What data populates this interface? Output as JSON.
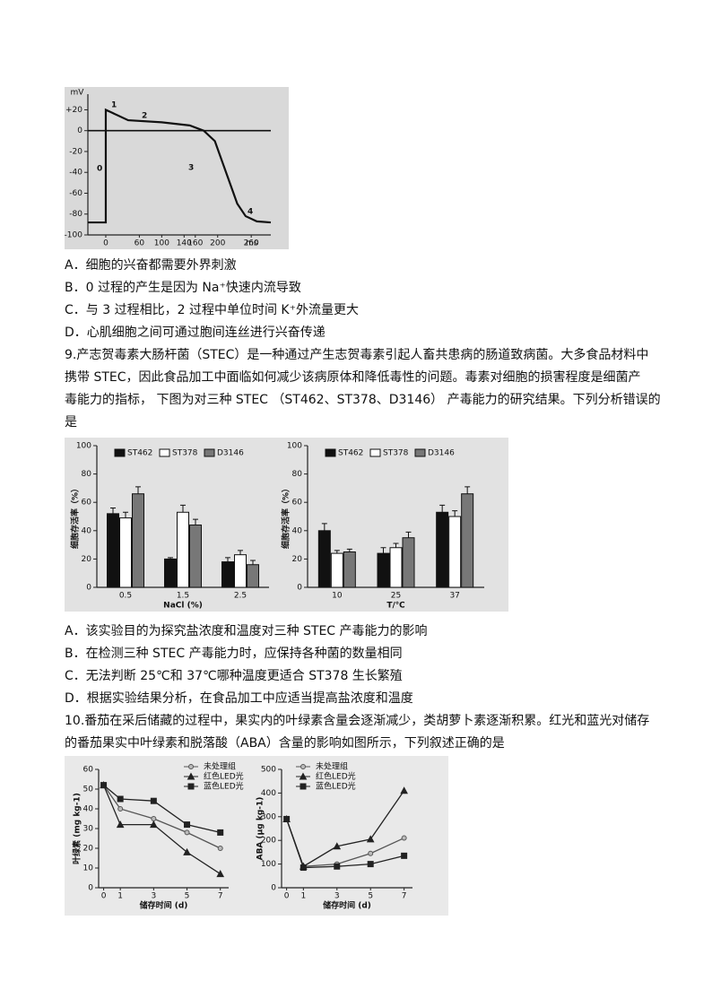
{
  "figure1": {
    "type": "line",
    "y_unit": "mV",
    "x_unit": "ms",
    "xlim": [
      -32,
      295
    ],
    "ylim": [
      -100,
      35
    ],
    "xticks": [
      0,
      60,
      100,
      140,
      160,
      200,
      260
    ],
    "yticks": [
      {
        "value": 20,
        "label": "+20"
      },
      0,
      -20,
      -40,
      -60,
      -80,
      -100
    ],
    "x": [
      -32,
      0,
      0,
      8,
      40,
      100,
      150,
      175,
      195,
      215,
      235,
      250,
      270,
      295
    ],
    "values": [
      -88,
      -88,
      20,
      18,
      10,
      8,
      5,
      0,
      -10,
      -40,
      -70,
      -82,
      -87,
      -88
    ],
    "annotations": [
      "0",
      "1",
      "2",
      "3",
      "4"
    ]
  },
  "q8_options": [
    "A．细胞的兴奋都需要外界刺激",
    "B．0 过程的产生是因为 Na⁺快速内流导致",
    "C．与 3 过程相比，2 过程中单位时间 K⁺外流量更大",
    "D．心肌细胞之间可通过胞间连丝进行兴奋传递"
  ],
  "q9": {
    "stem": [
      "9.产志贺毒素大肠杆菌（STEC）是一种通过产生志贺毒素引起人畜共患病的肠道致病菌。大多食品材料中",
      "携带 STEC，因此食品加工中面临如何减少该病原体和降低毒性的问题。毒素对细胞的损害程度是细菌产",
      "毒能力的指标， 下图为对三种 STEC （ST462、ST378、D3146） 产毒能力的研究结果。下列分析错误的",
      "是"
    ],
    "options": [
      "A．该实验目的为探究盐浓度和温度对三种 STEC 产毒能力的影响",
      "B．在检测三种 STEC 产毒能力时，应保持各种菌的数量相同",
      "C．无法判断 25℃和 37℃哪种温度更适合 ST378 生长繁殖",
      "D．根据实验结果分析，在食品加工中应适当提高盐浓度和温度"
    ]
  },
  "figure2": [
    {
      "type": "bar",
      "y_label": "细胞存活率（%）",
      "x_label": "NaCl (%)",
      "ylim": [
        0,
        100
      ],
      "yticks": [
        0,
        20,
        40,
        60,
        80,
        100
      ],
      "categories": [
        "0.5",
        "1.5",
        "2.5"
      ],
      "series": [
        {
          "name": "ST462",
          "color": "#111111",
          "values": [
            52,
            20,
            18
          ],
          "errors": [
            4,
            1,
            3
          ]
        },
        {
          "name": "ST378",
          "color": "#ffffff",
          "values": [
            49,
            53,
            23
          ],
          "errors": [
            4,
            5,
            3
          ]
        },
        {
          "name": "D3146",
          "color": "#777777",
          "values": [
            66,
            44,
            16
          ],
          "errors": [
            5,
            4,
            3
          ]
        }
      ]
    },
    {
      "type": "bar",
      "y_label": "细胞存活率（%）",
      "x_label": "T/℃",
      "ylim": [
        0,
        100
      ],
      "yticks": [
        0,
        20,
        40,
        60,
        80,
        100
      ],
      "categories": [
        "10",
        "25",
        "37"
      ],
      "series": [
        {
          "name": "ST462",
          "color": "#111111",
          "values": [
            40,
            24,
            53
          ],
          "errors": [
            5,
            4,
            5
          ]
        },
        {
          "name": "ST378",
          "color": "#ffffff",
          "values": [
            24,
            28,
            50
          ],
          "errors": [
            2,
            3,
            4
          ]
        },
        {
          "name": "D3146",
          "color": "#777777",
          "values": [
            25,
            35,
            66
          ],
          "errors": [
            2,
            4,
            5
          ]
        }
      ]
    }
  ],
  "q10": {
    "stem": [
      "10.番茄在采后储藏的过程中，果实内的叶绿素含量会逐渐减少，类胡萝卜素逐渐积累。红光和蓝光对储存",
      "的番茄果实中叶绿素和脱落酸（ABA）含量的影响如图所示，下列叙述正确的是"
    ]
  },
  "figure3": [
    {
      "type": "line",
      "y_label": "叶绿素 (mg kg-1)",
      "x_label": "储存时间 (d)",
      "xlim": [
        -0.3,
        7.5
      ],
      "ylim": [
        0,
        60
      ],
      "xticks": [
        0,
        1,
        3,
        5,
        7
      ],
      "yticks": [
        0,
        10,
        20,
        30,
        40,
        50,
        60
      ],
      "x": [
        0,
        1,
        3,
        5,
        7
      ],
      "series": [
        {
          "name": "未处理组",
          "color": "#555555",
          "marker": "circle",
          "values": [
            52,
            40,
            35,
            28,
            20
          ]
        },
        {
          "name": "红色LED光",
          "color": "#222222",
          "marker": "triangle",
          "values": [
            52,
            32,
            32,
            18,
            7
          ]
        },
        {
          "name": "蓝色LED光",
          "color": "#222222",
          "marker": "square",
          "values": [
            52,
            45,
            44,
            32,
            28
          ]
        }
      ]
    },
    {
      "type": "line",
      "y_label": "ABA (μg kg-1)",
      "x_label": "储存时间 (d)",
      "xlim": [
        -0.3,
        7.5
      ],
      "ylim": [
        0,
        500
      ],
      "xticks": [
        0,
        1,
        3,
        5,
        7
      ],
      "yticks": [
        0,
        100,
        200,
        300,
        400,
        500
      ],
      "x": [
        0,
        1,
        3,
        5,
        7
      ],
      "series": [
        {
          "name": "未处理组",
          "color": "#555555",
          "marker": "circle",
          "values": [
            290,
            90,
            100,
            145,
            210
          ]
        },
        {
          "name": "红色LED光",
          "color": "#222222",
          "marker": "triangle",
          "values": [
            290,
            90,
            175,
            205,
            410
          ]
        },
        {
          "name": "蓝色LED光",
          "color": "#222222",
          "marker": "square",
          "values": [
            290,
            85,
            90,
            100,
            135
          ]
        }
      ]
    }
  ]
}
